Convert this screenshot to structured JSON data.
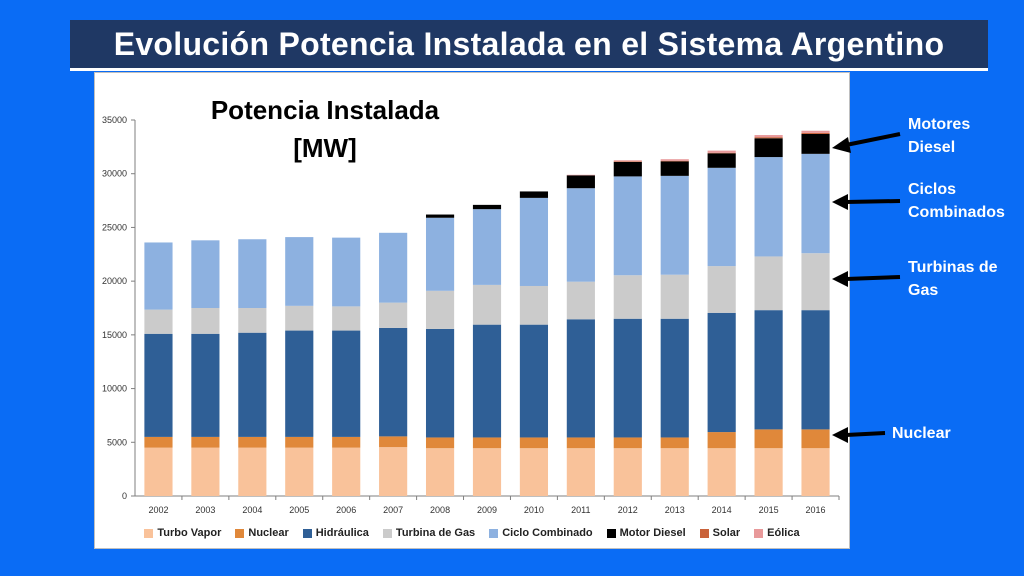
{
  "page": {
    "title": "Evolución Potencia Instalada en el Sistema Argentino",
    "chart_heading_line1": "Potencia Instalada",
    "chart_heading_line2": "[MW]"
  },
  "annotations": {
    "motores_line1": "Motores",
    "motores_line2": "Diesel",
    "ciclos_line1": "Ciclos",
    "ciclos_line2": "Combinados",
    "turbinas_line1": "Turbinas de",
    "turbinas_line2": "Gas",
    "nuclear": "Nuclear"
  },
  "colors": {
    "background": "#0a6cf5",
    "title_bar": "#1f3864"
  },
  "chart_data": {
    "type": "bar",
    "stacked": true,
    "title": "Potencia Instalada [MW]",
    "xlabel": "",
    "ylabel": "",
    "ylim": [
      0,
      35000
    ],
    "yticks": [
      0,
      5000,
      10000,
      15000,
      20000,
      25000,
      30000,
      35000
    ],
    "grid": false,
    "legend_position": "bottom",
    "categories": [
      "2002",
      "2003",
      "2004",
      "2005",
      "2006",
      "2007",
      "2008",
      "2009",
      "2010",
      "2011",
      "2012",
      "2013",
      "2014",
      "2015",
      "2016"
    ],
    "series": [
      {
        "name": "Turbo Vapor",
        "color": "#f9c29a",
        "values": [
          4500,
          4500,
          4500,
          4500,
          4500,
          4550,
          4450,
          4450,
          4450,
          4450,
          4450,
          4450,
          4450,
          4450,
          4450
        ]
      },
      {
        "name": "Nuclear",
        "color": "#e0883a",
        "values": [
          1000,
          1000,
          1000,
          1000,
          1000,
          1000,
          1000,
          1000,
          1000,
          1000,
          1000,
          1000,
          1500,
          1750,
          1750
        ]
      },
      {
        "name": "Hidráulica",
        "color": "#2f5f96",
        "values": [
          9600,
          9600,
          9700,
          9900,
          9900,
          10100,
          10100,
          10500,
          10500,
          11000,
          11050,
          11050,
          11100,
          11100,
          11100
        ]
      },
      {
        "name": "Turbina de Gas",
        "color": "#cbcbcb",
        "values": [
          2250,
          2400,
          2300,
          2300,
          2250,
          2350,
          3550,
          3700,
          3600,
          3500,
          4050,
          4100,
          4350,
          5000,
          5300
        ]
      },
      {
        "name": "Ciclo Combinado",
        "color": "#8db1e0",
        "values": [
          6250,
          6300,
          6400,
          6400,
          6400,
          6500,
          6800,
          7050,
          8200,
          8700,
          9200,
          9200,
          9150,
          9250,
          9250
        ]
      },
      {
        "name": "Motor Diesel",
        "color": "#000000",
        "values": [
          0,
          0,
          0,
          0,
          0,
          0,
          300,
          400,
          600,
          1200,
          1350,
          1350,
          1350,
          1750,
          1850
        ]
      },
      {
        "name": "Solar",
        "color": "#c9623a",
        "values": [
          0,
          0,
          0,
          0,
          0,
          0,
          0,
          0,
          0,
          0,
          50,
          50,
          50,
          100,
          100
        ]
      },
      {
        "name": "Eólica",
        "color": "#e8999a",
        "values": [
          0,
          0,
          0,
          0,
          0,
          0,
          0,
          0,
          0,
          50,
          100,
          150,
          200,
          200,
          200
        ]
      }
    ]
  }
}
